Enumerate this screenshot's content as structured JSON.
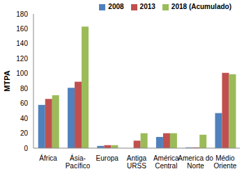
{
  "chart_data": {
    "type": "bar",
    "y_label": "MTPA",
    "categories": [
      "África",
      "Ásia-Pacífico",
      "Europa",
      "Antiga URSS",
      "América Central",
      "America do Norte",
      "Médio Oriente"
    ],
    "series": [
      {
        "name": "2008",
        "color": "#4f81bd",
        "values": [
          58,
          81,
          3,
          0,
          15,
          1,
          47
        ]
      },
      {
        "name": "2013",
        "color": "#c0504d",
        "values": [
          66,
          89,
          4,
          10,
          20,
          1,
          101
        ]
      },
      {
        "name": "2018 (Acumulado)",
        "color": "#9bbb59",
        "values": [
          71,
          163,
          4,
          20,
          20,
          18,
          99
        ]
      }
    ],
    "ylim": [
      0,
      180
    ],
    "yticks": [
      0,
      20,
      40,
      60,
      80,
      100,
      120,
      140,
      160,
      180
    ],
    "grid": false,
    "legend": "upper right"
  }
}
